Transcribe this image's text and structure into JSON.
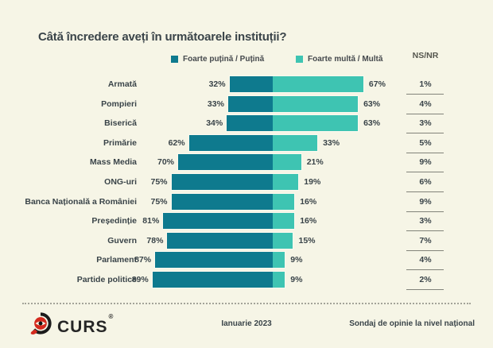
{
  "title": "Câtă încredere aveți în următoarele instituții?",
  "nsnr_header": "NS/NR",
  "legend": [
    {
      "label": "Foarte puțină / Puțină",
      "color": "#0e7a8e"
    },
    {
      "label": "Foarte multă / Multă",
      "color": "#3ec4b2"
    }
  ],
  "chart_data": {
    "type": "bar",
    "orientation": "horizontal-diverging",
    "title": "Câtă încredere aveți în următoarele instituții?",
    "legend_position": "top",
    "grid": false,
    "value_suffix": "%",
    "categories": [
      "Armată",
      "Pompieri",
      "Biserică",
      "Primărie",
      "Mass Media",
      "ONG-uri",
      "Banca Națională a României",
      "Președinție",
      "Guvern",
      "Parlament",
      "Partide politice"
    ],
    "series": [
      {
        "name": "Foarte puțină / Puțină",
        "color": "#0e7a8e",
        "values": [
          32,
          33,
          34,
          62,
          70,
          75,
          75,
          81,
          78,
          87,
          89
        ]
      },
      {
        "name": "Foarte multă / Multă",
        "color": "#3ec4b2",
        "values": [
          67,
          63,
          63,
          33,
          21,
          19,
          16,
          16,
          15,
          9,
          9
        ]
      }
    ],
    "nsnr_label": "NS/NR",
    "nsnr_values": [
      1,
      4,
      3,
      5,
      9,
      6,
      9,
      3,
      7,
      4,
      2
    ]
  },
  "footer": {
    "logo_text": "CURS",
    "logo_reg": "®",
    "date": "Ianuarie 2023",
    "note": "Sondaj de opinie la nivel național"
  },
  "colors": {
    "background": "#f6f5e6",
    "negative": "#0e7a8e",
    "positive": "#3ec4b2",
    "text": "#3a4449"
  }
}
